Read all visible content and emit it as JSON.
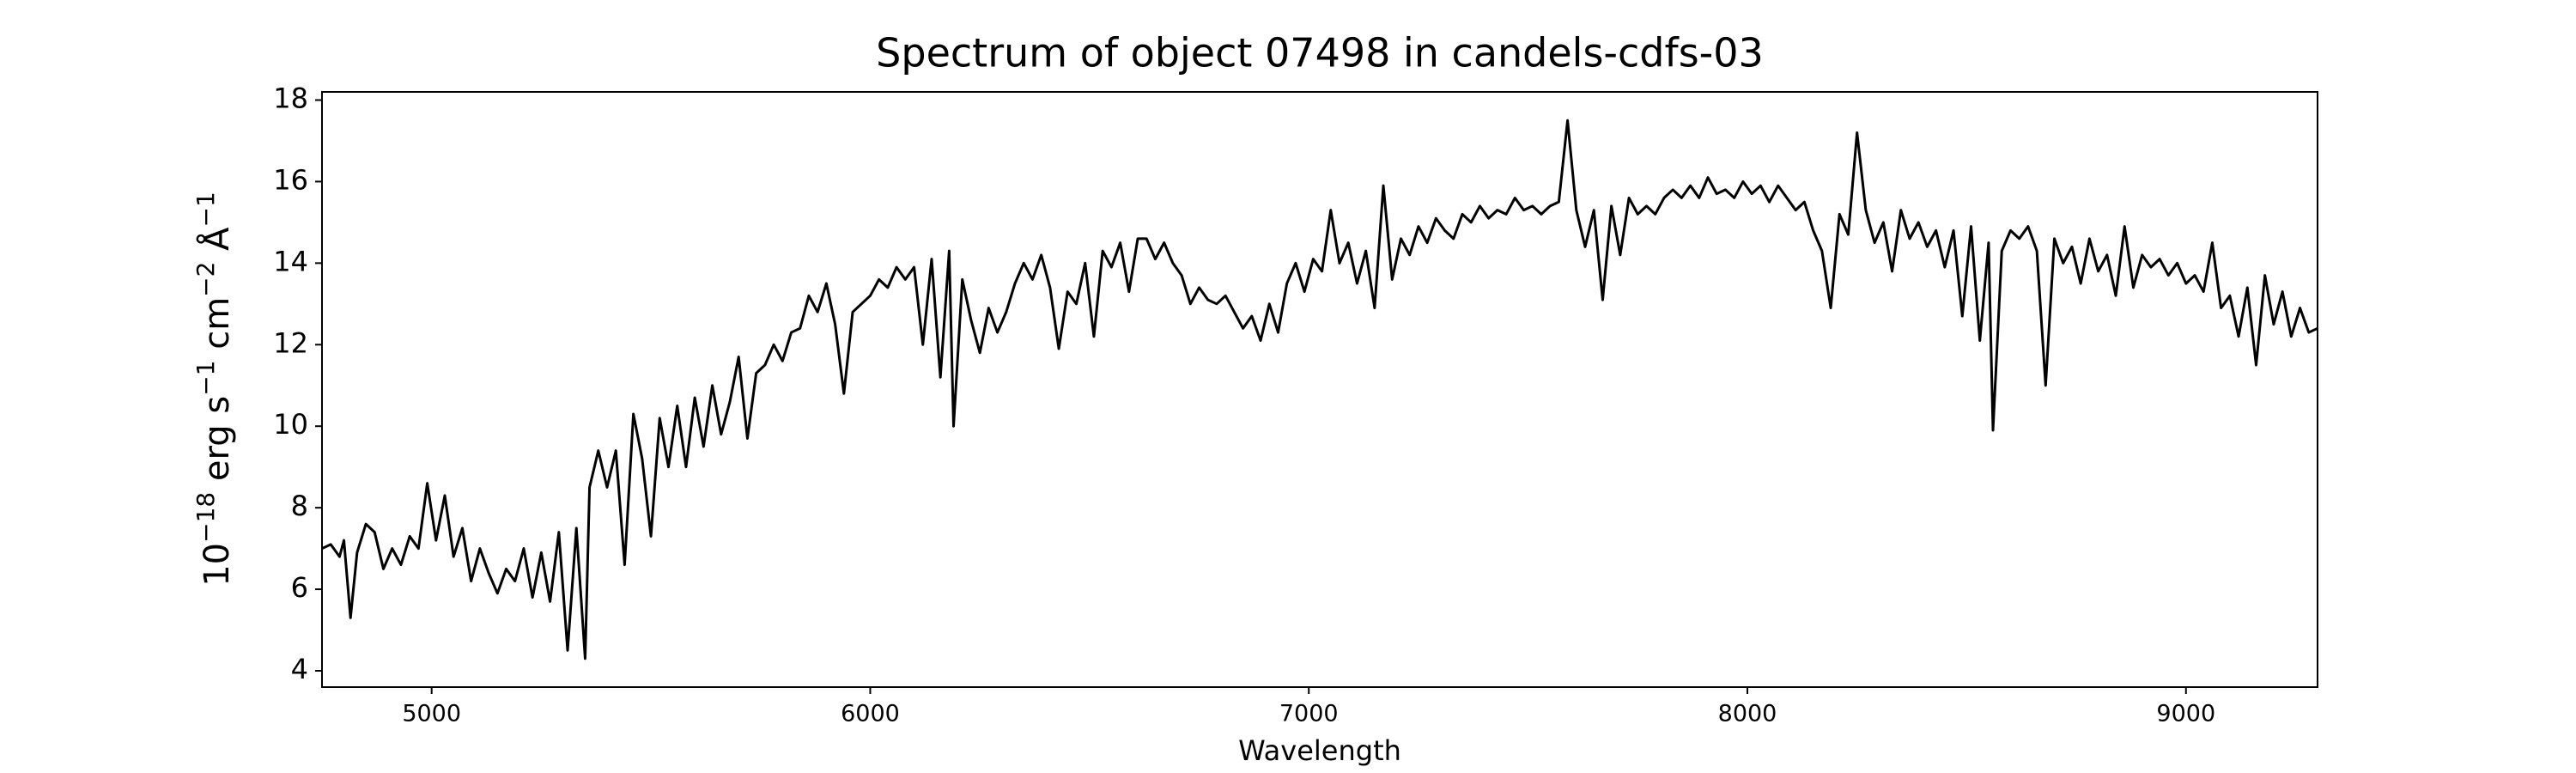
{
  "chart_data": {
    "type": "line",
    "title": "Spectrum of object 07498 in candels-cdfs-03",
    "xlabel": "Wavelength",
    "ylabel_parts": [
      "10",
      "−18",
      " erg s",
      "−1",
      " cm",
      "−2",
      " Å",
      "−1"
    ],
    "color": "#000000",
    "xlim": [
      4750,
      9300
    ],
    "xticks": [
      5000,
      6000,
      7000,
      8000,
      9000
    ],
    "ylim": [
      3.6,
      18.2
    ],
    "yticks": [
      4,
      6,
      8,
      10,
      12,
      14,
      16,
      18
    ],
    "x": [
      4750,
      4770,
      4790,
      4800,
      4815,
      4830,
      4850,
      4870,
      4890,
      4910,
      4930,
      4950,
      4970,
      4990,
      5010,
      5030,
      5050,
      5070,
      5090,
      5110,
      5130,
      5150,
      5170,
      5190,
      5210,
      5230,
      5250,
      5270,
      5290,
      5310,
      5330,
      5350,
      5360,
      5380,
      5400,
      5420,
      5440,
      5460,
      5480,
      5500,
      5520,
      5540,
      5560,
      5580,
      5600,
      5620,
      5640,
      5660,
      5680,
      5700,
      5720,
      5740,
      5760,
      5780,
      5800,
      5820,
      5840,
      5860,
      5880,
      5900,
      5920,
      5940,
      5960,
      5980,
      6000,
      6020,
      6040,
      6060,
      6080,
      6100,
      6120,
      6140,
      6160,
      6180,
      6190,
      6210,
      6230,
      6250,
      6270,
      6290,
      6310,
      6330,
      6350,
      6370,
      6390,
      6410,
      6430,
      6450,
      6470,
      6490,
      6510,
      6530,
      6550,
      6570,
      6590,
      6610,
      6630,
      6650,
      6670,
      6690,
      6710,
      6730,
      6750,
      6770,
      6790,
      6810,
      6830,
      6850,
      6870,
      6890,
      6910,
      6930,
      6950,
      6970,
      6990,
      7010,
      7030,
      7050,
      7070,
      7090,
      7110,
      7130,
      7150,
      7170,
      7190,
      7210,
      7230,
      7250,
      7270,
      7290,
      7310,
      7330,
      7350,
      7370,
      7390,
      7410,
      7430,
      7450,
      7470,
      7490,
      7510,
      7530,
      7550,
      7570,
      7590,
      7610,
      7630,
      7650,
      7670,
      7690,
      7710,
      7730,
      7750,
      7770,
      7790,
      7810,
      7830,
      7850,
      7870,
      7890,
      7910,
      7930,
      7950,
      7970,
      7990,
      8010,
      8030,
      8050,
      8070,
      8090,
      8110,
      8130,
      8150,
      8170,
      8190,
      8210,
      8230,
      8250,
      8270,
      8290,
      8310,
      8330,
      8350,
      8370,
      8390,
      8410,
      8430,
      8450,
      8470,
      8490,
      8510,
      8530,
      8550,
      8560,
      8580,
      8600,
      8620,
      8640,
      8660,
      8680,
      8700,
      8720,
      8740,
      8760,
      8780,
      8800,
      8820,
      8840,
      8860,
      8880,
      8900,
      8920,
      8940,
      8960,
      8980,
      9000,
      9020,
      9040,
      9060,
      9080,
      9100,
      9120,
      9140,
      9160,
      9180,
      9200,
      9220,
      9240,
      9260,
      9280,
      9300
    ],
    "values": [
      7.0,
      7.1,
      6.8,
      7.2,
      5.3,
      6.9,
      7.6,
      7.4,
      6.5,
      7.0,
      6.6,
      7.3,
      7.0,
      8.6,
      7.2,
      8.3,
      6.8,
      7.5,
      6.2,
      7.0,
      6.4,
      5.9,
      6.5,
      6.2,
      7.0,
      5.8,
      6.9,
      5.7,
      7.4,
      4.5,
      7.5,
      4.3,
      8.5,
      9.4,
      8.5,
      9.4,
      6.6,
      10.3,
      9.2,
      7.3,
      10.2,
      9.0,
      10.5,
      9.0,
      10.7,
      9.5,
      11.0,
      9.8,
      10.6,
      11.7,
      9.7,
      11.3,
      11.5,
      12.0,
      11.6,
      12.3,
      12.4,
      13.2,
      12.8,
      13.5,
      12.5,
      10.8,
      12.8,
      13.0,
      13.2,
      13.6,
      13.4,
      13.9,
      13.6,
      13.9,
      12.0,
      14.1,
      11.2,
      14.3,
      10.0,
      13.6,
      12.6,
      11.8,
      12.9,
      12.3,
      12.8,
      13.5,
      14.0,
      13.6,
      14.2,
      13.4,
      11.9,
      13.3,
      13.0,
      14.0,
      12.2,
      14.3,
      13.9,
      14.5,
      13.3,
      14.6,
      14.6,
      14.1,
      14.5,
      14.0,
      13.7,
      13.0,
      13.4,
      13.1,
      13.0,
      13.2,
      12.8,
      12.4,
      12.7,
      12.1,
      13.0,
      12.3,
      13.5,
      14.0,
      13.3,
      14.1,
      13.8,
      15.3,
      14.0,
      14.5,
      13.5,
      14.3,
      12.9,
      15.9,
      13.6,
      14.6,
      14.2,
      14.9,
      14.5,
      15.1,
      14.8,
      14.6,
      15.2,
      15.0,
      15.4,
      15.1,
      15.3,
      15.2,
      15.6,
      15.3,
      15.4,
      15.2,
      15.4,
      15.5,
      17.5,
      15.3,
      14.4,
      15.3,
      13.1,
      15.4,
      14.2,
      15.6,
      15.2,
      15.4,
      15.2,
      15.6,
      15.8,
      15.6,
      15.9,
      15.6,
      16.1,
      15.7,
      15.8,
      15.6,
      16.0,
      15.7,
      15.9,
      15.5,
      15.9,
      15.6,
      15.3,
      15.5,
      14.8,
      14.3,
      12.9,
      15.2,
      14.7,
      17.2,
      15.3,
      14.5,
      15.0,
      13.8,
      15.3,
      14.6,
      15.0,
      14.4,
      14.8,
      13.9,
      14.8,
      12.7,
      14.9,
      12.1,
      14.5,
      9.9,
      14.3,
      14.8,
      14.6,
      14.9,
      14.3,
      11.0,
      14.6,
      14.0,
      14.4,
      13.5,
      14.6,
      13.8,
      14.2,
      13.2,
      14.9,
      13.4,
      14.2,
      13.9,
      14.1,
      13.7,
      14.0,
      13.5,
      13.7,
      13.3,
      14.5,
      12.9,
      13.2,
      12.2,
      13.4,
      11.5,
      13.7,
      12.5,
      13.3,
      12.2,
      12.9,
      12.3,
      12.4
    ]
  }
}
